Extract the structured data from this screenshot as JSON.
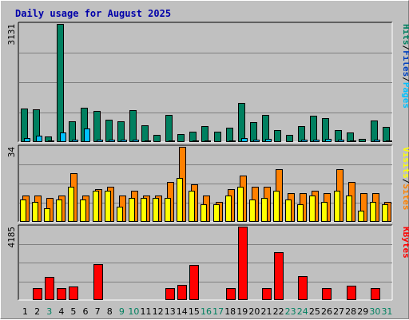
{
  "chart_data": [
    {
      "type": "bar",
      "title": "Daily usage for August 2025",
      "y_max_label": "3131",
      "ylim": [
        0,
        3131
      ],
      "right_labels": [
        {
          "text": "Pages",
          "color": "#00c0ff"
        },
        {
          "text": "Files",
          "color": "#0040c0"
        },
        {
          "text": "Hits",
          "color": "#008060"
        }
      ],
      "categories": [
        "1",
        "2",
        "3",
        "4",
        "5",
        "6",
        "7",
        "8",
        "9",
        "10",
        "11",
        "12",
        "13",
        "14",
        "15",
        "16",
        "17",
        "18",
        "19",
        "20",
        "21",
        "22",
        "23",
        "24",
        "25",
        "26",
        "27",
        "28",
        "29",
        "30",
        "31"
      ],
      "series": [
        {
          "name": "Hits",
          "color": "#008060",
          "values": [
            890,
            870,
            140,
            3131,
            540,
            920,
            820,
            600,
            550,
            840,
            440,
            190,
            720,
            210,
            280,
            430,
            280,
            380,
            1030,
            530,
            720,
            310,
            200,
            430,
            690,
            640,
            310,
            250,
            90,
            580,
            410
          ]
        },
        {
          "name": "Pages",
          "color": "#00c0ff",
          "values": [
            110,
            170,
            40,
            260,
            70,
            350,
            70,
            60,
            60,
            60,
            40,
            30,
            50,
            30,
            40,
            40,
            30,
            40,
            110,
            70,
            80,
            30,
            30,
            60,
            60,
            90,
            60,
            40,
            20,
            60,
            50
          ]
        }
      ]
    },
    {
      "type": "bar",
      "y_max_label": "34",
      "ylim": [
        0,
        34
      ],
      "right_labels": [
        {
          "text": "Sites",
          "color": "#ff8000"
        },
        {
          "text": "Visits",
          "color": "#ffff00"
        }
      ],
      "categories": [
        "1",
        "2",
        "3",
        "4",
        "5",
        "6",
        "7",
        "8",
        "9",
        "10",
        "11",
        "12",
        "13",
        "14",
        "15",
        "16",
        "17",
        "18",
        "19",
        "20",
        "21",
        "22",
        "23",
        "24",
        "25",
        "26",
        "27",
        "28",
        "29",
        "30",
        "31"
      ],
      "series": [
        {
          "name": "Sites",
          "color": "#ff8000",
          "values": [
            12,
            12,
            11,
            12,
            22,
            12,
            15,
            16,
            12,
            14,
            12,
            12,
            18,
            34,
            17,
            12,
            9,
            15,
            21,
            16,
            16,
            24,
            13,
            13,
            14,
            13,
            24,
            18,
            13,
            13,
            9
          ]
        },
        {
          "name": "Visits",
          "color": "#ffff00",
          "values": [
            10,
            9,
            6,
            10,
            16,
            10,
            14,
            14,
            7,
            11,
            11,
            11,
            11,
            20,
            14,
            8,
            8,
            12,
            16,
            10,
            11,
            14,
            10,
            8,
            12,
            9,
            14,
            12,
            5,
            9,
            8
          ]
        }
      ]
    },
    {
      "type": "bar",
      "y_max_label": "4185",
      "ylim": [
        0,
        4185
      ],
      "right_labels": [
        {
          "text": "KBytes",
          "color": "#ff0000"
        }
      ],
      "categories": [
        "1",
        "2",
        "3",
        "4",
        "5",
        "6",
        "7",
        "8",
        "9",
        "10",
        "11",
        "12",
        "13",
        "14",
        "15",
        "16",
        "17",
        "18",
        "19",
        "20",
        "21",
        "22",
        "23",
        "24",
        "25",
        "26",
        "27",
        "28",
        "29",
        "30",
        "31"
      ],
      "series": [
        {
          "name": "KBytes",
          "color": "#ff0000",
          "values": [
            0,
            670,
            1320,
            670,
            780,
            0,
            2060,
            0,
            0,
            0,
            0,
            0,
            690,
            860,
            2000,
            0,
            0,
            700,
            4185,
            0,
            670,
            2720,
            0,
            1380,
            0,
            660,
            0,
            800,
            0,
            690,
            0
          ]
        }
      ]
    }
  ],
  "x_labels": [
    {
      "text": "1",
      "color": "#000000"
    },
    {
      "text": "2",
      "color": "#000000"
    },
    {
      "text": "3",
      "color": "#008060"
    },
    {
      "text": "4",
      "color": "#000000"
    },
    {
      "text": "5",
      "color": "#000000"
    },
    {
      "text": "6",
      "color": "#000000"
    },
    {
      "text": "7",
      "color": "#000000"
    },
    {
      "text": "8",
      "color": "#000000"
    },
    {
      "text": "9",
      "color": "#008060"
    },
    {
      "text": "10",
      "color": "#008060"
    },
    {
      "text": "11",
      "color": "#000000"
    },
    {
      "text": "12",
      "color": "#000000"
    },
    {
      "text": "13",
      "color": "#000000"
    },
    {
      "text": "14",
      "color": "#000000"
    },
    {
      "text": "15",
      "color": "#000000"
    },
    {
      "text": "16",
      "color": "#008060"
    },
    {
      "text": "17",
      "color": "#008060"
    },
    {
      "text": "18",
      "color": "#000000"
    },
    {
      "text": "19",
      "color": "#000000"
    },
    {
      "text": "20",
      "color": "#000000"
    },
    {
      "text": "21",
      "color": "#000000"
    },
    {
      "text": "22",
      "color": "#000000"
    },
    {
      "text": "23",
      "color": "#008060"
    },
    {
      "text": "24",
      "color": "#008060"
    },
    {
      "text": "25",
      "color": "#000000"
    },
    {
      "text": "26",
      "color": "#000000"
    },
    {
      "text": "27",
      "color": "#000000"
    },
    {
      "text": "28",
      "color": "#000000"
    },
    {
      "text": "29",
      "color": "#000000"
    },
    {
      "text": "30",
      "color": "#008060"
    },
    {
      "text": "31",
      "color": "#008060"
    }
  ],
  "colors": {
    "background": "#c0c0c0",
    "gridline": "#808080",
    "title": "#0000aa"
  }
}
